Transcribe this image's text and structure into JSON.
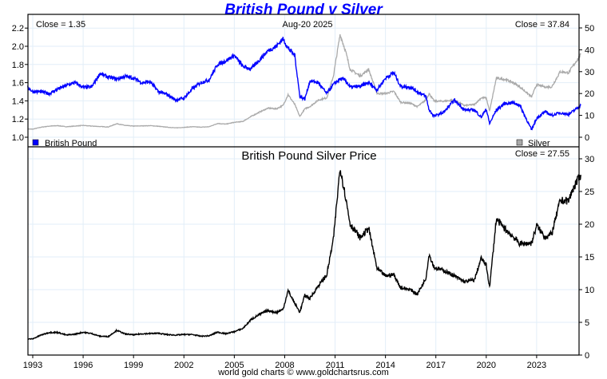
{
  "chart_data": {
    "title": "British Pound v Silver",
    "type": "line",
    "footer": "world gold charts © www.goldchartsrus.com",
    "x_ticks": [
      "1993",
      "1996",
      "1999",
      "2002",
      "2005",
      "2008",
      "2011",
      "2014",
      "2017",
      "2020",
      "2023"
    ],
    "top_panel": {
      "date_label": "Aug-20  2025",
      "left_close_label": "Close = 1.35",
      "right_close_label": "Close = 37.84",
      "left_axis": {
        "ticks": [
          "1.0",
          "1.2",
          "1.4",
          "1.6",
          "1.8",
          "2.0",
          "2.2"
        ],
        "range": [
          1.0,
          2.2
        ]
      },
      "right_axis": {
        "ticks": [
          "0",
          "10",
          "20",
          "30",
          "40",
          "50"
        ],
        "range": [
          0,
          50
        ]
      },
      "legend": [
        {
          "name": "British Pound",
          "color": "#0000ff",
          "position": "bottom-left"
        },
        {
          "name": "Silver",
          "color": "#aaaaaa",
          "position": "bottom-right"
        }
      ]
    },
    "bottom_panel": {
      "title": "British Pound Silver Price",
      "close_label": "Close = 27.55",
      "right_axis": {
        "ticks": [
          "0",
          "5",
          "10",
          "15",
          "20",
          "25",
          "30"
        ],
        "range": [
          0,
          30
        ]
      }
    },
    "x": [
      1992.7,
      1993.0,
      1993.5,
      1994.0,
      1994.5,
      1995.0,
      1995.5,
      1996.0,
      1996.5,
      1997.0,
      1997.5,
      1998.0,
      1998.5,
      1999.0,
      1999.5,
      2000.0,
      2000.5,
      2001.0,
      2001.5,
      2002.0,
      2002.5,
      2003.0,
      2003.5,
      2004.0,
      2004.5,
      2005.0,
      2005.5,
      2006.0,
      2006.5,
      2007.0,
      2007.5,
      2007.9,
      2008.2,
      2008.6,
      2008.9,
      2009.2,
      2009.5,
      2010.0,
      2010.5,
      2010.9,
      2011.3,
      2011.6,
      2011.9,
      2012.5,
      2013.0,
      2013.5,
      2014.0,
      2014.5,
      2014.9,
      2015.5,
      2015.9,
      2016.4,
      2016.6,
      2016.9,
      2017.5,
      2018.1,
      2018.7,
      2019.3,
      2019.7,
      2020.0,
      2020.2,
      2020.6,
      2021.1,
      2021.6,
      2022.0,
      2022.7,
      2023.0,
      2023.5,
      2023.9,
      2024.4,
      2024.9,
      2025.2,
      2025.63
    ],
    "series": [
      {
        "name": "British Pound",
        "axis": "top-left",
        "color": "#0000ff",
        "values": [
          1.55,
          1.5,
          1.5,
          1.48,
          1.53,
          1.57,
          1.6,
          1.55,
          1.55,
          1.7,
          1.66,
          1.64,
          1.67,
          1.65,
          1.6,
          1.61,
          1.5,
          1.47,
          1.41,
          1.43,
          1.53,
          1.6,
          1.63,
          1.8,
          1.84,
          1.9,
          1.78,
          1.75,
          1.85,
          1.95,
          2.0,
          2.08,
          1.98,
          1.9,
          1.45,
          1.42,
          1.62,
          1.6,
          1.48,
          1.58,
          1.64,
          1.63,
          1.55,
          1.56,
          1.6,
          1.52,
          1.65,
          1.71,
          1.56,
          1.55,
          1.5,
          1.45,
          1.3,
          1.23,
          1.28,
          1.41,
          1.3,
          1.3,
          1.22,
          1.31,
          1.15,
          1.3,
          1.37,
          1.38,
          1.35,
          1.08,
          1.21,
          1.28,
          1.24,
          1.27,
          1.25,
          1.29,
          1.35
        ]
      },
      {
        "name": "Silver",
        "axis": "top-right",
        "color": "#aaaaaa",
        "values": [
          3.8,
          3.7,
          4.6,
          5.1,
          5.3,
          4.8,
          5.1,
          5.4,
          5.1,
          4.9,
          4.7,
          6.2,
          5.4,
          5.1,
          5.2,
          5.3,
          5.0,
          4.6,
          4.3,
          4.5,
          4.8,
          4.6,
          4.8,
          6.3,
          6.0,
          6.8,
          7.2,
          9.5,
          11.5,
          13.3,
          13.0,
          14.5,
          19.5,
          15.0,
          9.5,
          13.0,
          14.0,
          17.0,
          18.0,
          28.0,
          47.0,
          40.0,
          31.0,
          28.0,
          31.0,
          20.0,
          20.0,
          21.0,
          16.0,
          15.5,
          14.0,
          17.0,
          20.0,
          16.5,
          16.5,
          17.0,
          14.5,
          15.0,
          18.0,
          18.0,
          12.0,
          27.0,
          26.5,
          25.0,
          23.0,
          18.5,
          24.0,
          23.0,
          23.0,
          30.0,
          29.5,
          33.0,
          37.84
        ]
      },
      {
        "name": "British Pound Silver Price",
        "axis": "bottom-right",
        "color": "#000000",
        "values": [
          2.45,
          2.47,
          3.07,
          3.45,
          3.46,
          3.06,
          3.19,
          3.48,
          3.29,
          2.88,
          2.83,
          3.78,
          3.23,
          3.09,
          3.25,
          3.29,
          3.33,
          3.13,
          3.05,
          3.15,
          3.14,
          2.88,
          2.94,
          3.5,
          3.26,
          3.58,
          4.04,
          5.43,
          6.22,
          6.82,
          6.5,
          6.97,
          9.85,
          7.89,
          6.55,
          9.15,
          8.64,
          10.6,
          12.2,
          17.7,
          28.7,
          24.5,
          20.0,
          17.9,
          19.4,
          13.2,
          12.1,
          12.3,
          10.3,
          10.0,
          9.3,
          11.7,
          15.4,
          13.4,
          12.9,
          12.1,
          11.2,
          11.5,
          14.8,
          13.7,
          10.4,
          20.8,
          19.3,
          18.1,
          17.0,
          17.1,
          19.8,
          18.0,
          18.5,
          23.6,
          23.6,
          25.6,
          27.55
        ]
      }
    ]
  }
}
